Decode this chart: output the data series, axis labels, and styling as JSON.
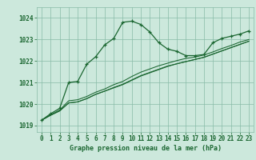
{
  "title": "Graphe pression niveau de la mer (hPa)",
  "bg_color": "#cce8dc",
  "grid_color": "#88bba8",
  "line_color": "#1a6630",
  "text_color": "#1a6630",
  "xlim": [
    -0.5,
    23.5
  ],
  "ylim": [
    1018.7,
    1024.5
  ],
  "yticks": [
    1019,
    1020,
    1021,
    1022,
    1023,
    1024
  ],
  "xticks": [
    0,
    1,
    2,
    3,
    4,
    5,
    6,
    7,
    8,
    9,
    10,
    11,
    12,
    13,
    14,
    15,
    16,
    17,
    18,
    19,
    20,
    21,
    22,
    23
  ],
  "series1_x": [
    0,
    1,
    2,
    3,
    4,
    5,
    6,
    7,
    8,
    9,
    10,
    11,
    12,
    13,
    14,
    15,
    16,
    17,
    18,
    19,
    20,
    21,
    22,
    23
  ],
  "series1_y": [
    1019.25,
    1019.55,
    1019.8,
    1021.0,
    1021.05,
    1021.85,
    1022.2,
    1022.75,
    1023.05,
    1023.8,
    1023.85,
    1023.7,
    1023.35,
    1022.85,
    1022.55,
    1022.45,
    1022.25,
    1022.25,
    1022.3,
    1022.85,
    1023.05,
    1023.15,
    1023.25,
    1023.4
  ],
  "series2_x": [
    0,
    1,
    2,
    3,
    4,
    5,
    6,
    7,
    8,
    9,
    10,
    11,
    12,
    13,
    14,
    15,
    16,
    17,
    18,
    19,
    20,
    21,
    22,
    23
  ],
  "series2_y": [
    1019.25,
    1019.5,
    1019.72,
    1020.15,
    1020.2,
    1020.35,
    1020.55,
    1020.7,
    1020.9,
    1021.05,
    1021.28,
    1021.48,
    1021.63,
    1021.78,
    1021.9,
    1022.02,
    1022.12,
    1022.18,
    1022.28,
    1022.42,
    1022.58,
    1022.72,
    1022.88,
    1023.0
  ],
  "series3_x": [
    0,
    1,
    2,
    3,
    4,
    5,
    6,
    7,
    8,
    9,
    10,
    11,
    12,
    13,
    14,
    15,
    16,
    17,
    18,
    19,
    20,
    21,
    22,
    23
  ],
  "series3_y": [
    1019.25,
    1019.48,
    1019.68,
    1020.05,
    1020.1,
    1020.25,
    1020.45,
    1020.6,
    1020.75,
    1020.9,
    1021.1,
    1021.3,
    1021.45,
    1021.6,
    1021.75,
    1021.87,
    1021.97,
    1022.07,
    1022.17,
    1022.32,
    1022.47,
    1022.62,
    1022.77,
    1022.92
  ],
  "series4_x": [
    0,
    1,
    2,
    3,
    4,
    5,
    6,
    7,
    8,
    9,
    10,
    11,
    12,
    13,
    14,
    15,
    16,
    17,
    18,
    19,
    20,
    21,
    22,
    23
  ],
  "series4_y": [
    1019.25,
    1019.48,
    1019.68,
    1020.05,
    1020.1,
    1020.25,
    1020.45,
    1020.6,
    1020.77,
    1020.92,
    1021.12,
    1021.32,
    1021.47,
    1021.62,
    1021.77,
    1021.87,
    1021.97,
    1022.07,
    1022.17,
    1022.32,
    1022.47,
    1022.62,
    1022.77,
    1022.92
  ]
}
